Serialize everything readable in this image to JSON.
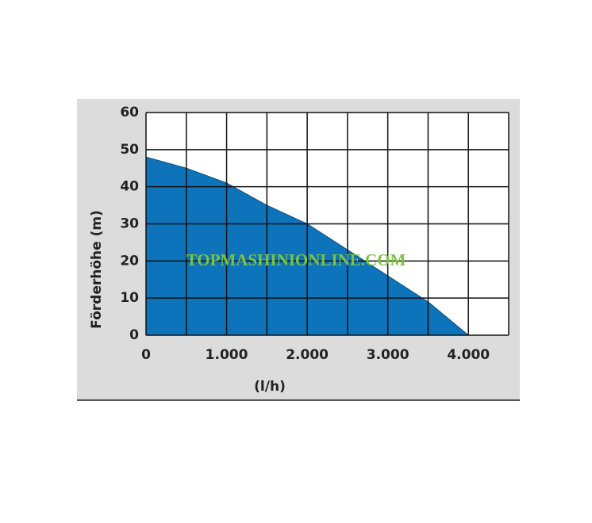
{
  "chart_data": {
    "type": "area",
    "y_label": "Förderhöhe (m)",
    "x_label": "(l/h)",
    "watermark": "TOPMASHINIONLINE.COM",
    "x": [
      0,
      500,
      1000,
      1500,
      2000,
      2500,
      3000,
      3500,
      4000
    ],
    "values": [
      48,
      45,
      41,
      35,
      30,
      23,
      16,
      9,
      0
    ],
    "color": "#0d73ba",
    "xlim": [
      0,
      4500
    ],
    "xticks": [
      0,
      {
        "value": 1000,
        "label": "1.000"
      },
      {
        "value": 2000,
        "label": "2.000"
      },
      {
        "value": 3000,
        "label": "3.000"
      },
      {
        "value": 4000,
        "label": "4.000"
      }
    ],
    "minor_xgrid": [
      500,
      1500,
      2500,
      3500,
      4500
    ],
    "ylim": [
      0,
      60
    ],
    "yticks": [
      0,
      10,
      20,
      30,
      40,
      50,
      60
    ],
    "grid": true
  }
}
